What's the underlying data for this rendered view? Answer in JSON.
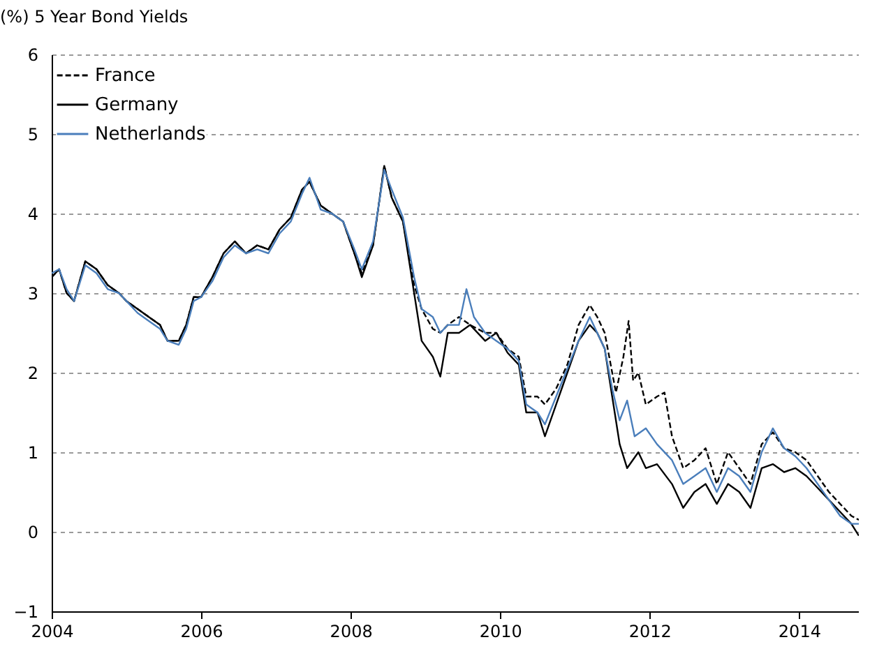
{
  "chart_data": {
    "type": "line",
    "title": "(%) 5 Year Bond Yields",
    "xlim": [
      2004,
      2014.8
    ],
    "xticks": [
      2004,
      2006,
      2008,
      2010,
      2012,
      2014
    ],
    "ylim": [
      -1,
      6
    ],
    "yticks": [
      -1,
      0,
      1,
      2,
      3,
      4,
      5,
      6
    ],
    "grid": "y",
    "legend": "top left",
    "marker": "none",
    "series": [
      {
        "name": "France",
        "color": "#000000",
        "line_style": "dashed",
        "x": [
          2004.0,
          2004.1,
          2004.2,
          2004.3,
          2004.45,
          2004.6,
          2004.75,
          2004.9,
          2005.0,
          2005.15,
          2005.3,
          2005.45,
          2005.55,
          2005.7,
          2005.8,
          2005.9,
          2006.0,
          2006.15,
          2006.3,
          2006.45,
          2006.6,
          2006.75,
          2006.9,
          2007.05,
          2007.2,
          2007.35,
          2007.45,
          2007.6,
          2007.75,
          2007.9,
          2008.05,
          2008.15,
          2008.3,
          2008.45,
          2008.55,
          2008.7,
          2008.85,
          2008.95,
          2009.1,
          2009.2,
          2009.3,
          2009.45,
          2009.6,
          2009.8,
          2009.95,
          2010.1,
          2010.25,
          2010.35,
          2010.5,
          2010.6,
          2010.75,
          2010.9,
          2011.05,
          2011.2,
          2011.3,
          2011.4,
          2011.5,
          2011.55,
          2011.65,
          2011.72,
          2011.78,
          2011.85,
          2011.95,
          2012.1,
          2012.2,
          2012.3,
          2012.45,
          2012.6,
          2012.75,
          2012.9,
          2013.05,
          2013.2,
          2013.35,
          2013.5,
          2013.65,
          2013.8,
          2013.95,
          2014.1,
          2014.25,
          2014.4,
          2014.55,
          2014.7,
          2014.8
        ],
        "values": [
          3.2,
          3.3,
          3.0,
          2.9,
          3.4,
          3.3,
          3.1,
          3.0,
          2.9,
          2.8,
          2.7,
          2.6,
          2.4,
          2.4,
          2.6,
          2.95,
          2.95,
          3.2,
          3.5,
          3.65,
          3.5,
          3.6,
          3.55,
          3.8,
          3.95,
          4.3,
          4.4,
          4.1,
          4.0,
          3.9,
          3.5,
          3.25,
          3.6,
          4.6,
          4.2,
          3.9,
          3.1,
          2.8,
          2.55,
          2.5,
          2.6,
          2.7,
          2.6,
          2.5,
          2.5,
          2.3,
          2.2,
          1.7,
          1.7,
          1.6,
          1.8,
          2.1,
          2.6,
          2.85,
          2.7,
          2.5,
          2.0,
          1.75,
          2.2,
          2.65,
          1.9,
          2.0,
          1.6,
          1.7,
          1.75,
          1.2,
          0.8,
          0.9,
          1.05,
          0.6,
          1.0,
          0.8,
          0.6,
          1.1,
          1.25,
          1.05,
          1.0,
          0.9,
          0.7,
          0.5,
          0.35,
          0.2,
          0.15
        ]
      },
      {
        "name": "Germany",
        "color": "#000000",
        "line_style": "solid",
        "x": [
          2004.0,
          2004.1,
          2004.2,
          2004.3,
          2004.45,
          2004.6,
          2004.75,
          2004.9,
          2005.0,
          2005.15,
          2005.3,
          2005.45,
          2005.55,
          2005.7,
          2005.8,
          2005.9,
          2006.0,
          2006.15,
          2006.3,
          2006.45,
          2006.6,
          2006.75,
          2006.9,
          2007.05,
          2007.2,
          2007.35,
          2007.45,
          2007.6,
          2007.75,
          2007.9,
          2008.05,
          2008.15,
          2008.3,
          2008.45,
          2008.55,
          2008.7,
          2008.85,
          2008.95,
          2009.1,
          2009.2,
          2009.3,
          2009.45,
          2009.6,
          2009.8,
          2009.95,
          2010.1,
          2010.25,
          2010.35,
          2010.5,
          2010.6,
          2010.75,
          2010.9,
          2011.05,
          2011.2,
          2011.3,
          2011.4,
          2011.5,
          2011.6,
          2011.7,
          2011.85,
          2011.95,
          2012.1,
          2012.3,
          2012.45,
          2012.6,
          2012.75,
          2012.9,
          2013.05,
          2013.2,
          2013.35,
          2013.5,
          2013.65,
          2013.8,
          2013.95,
          2014.1,
          2014.25,
          2014.4,
          2014.55,
          2014.7,
          2014.8
        ],
        "values": [
          3.2,
          3.3,
          3.0,
          2.9,
          3.4,
          3.3,
          3.1,
          3.0,
          2.9,
          2.8,
          2.7,
          2.6,
          2.4,
          2.4,
          2.6,
          2.95,
          2.95,
          3.2,
          3.5,
          3.65,
          3.5,
          3.6,
          3.55,
          3.8,
          3.95,
          4.3,
          4.4,
          4.1,
          4.0,
          3.9,
          3.5,
          3.2,
          3.6,
          4.6,
          4.2,
          3.9,
          3.0,
          2.4,
          2.2,
          1.95,
          2.5,
          2.5,
          2.6,
          2.4,
          2.5,
          2.25,
          2.1,
          1.5,
          1.5,
          1.2,
          1.6,
          2.0,
          2.4,
          2.6,
          2.5,
          2.3,
          1.7,
          1.1,
          0.8,
          1.0,
          0.8,
          0.85,
          0.6,
          0.3,
          0.5,
          0.6,
          0.35,
          0.6,
          0.5,
          0.3,
          0.8,
          0.85,
          0.75,
          0.8,
          0.7,
          0.55,
          0.4,
          0.25,
          0.1,
          -0.05
        ]
      },
      {
        "name": "Netherlands",
        "color": "#4a7ebb",
        "line_style": "solid",
        "x": [
          2004.0,
          2004.1,
          2004.2,
          2004.3,
          2004.45,
          2004.6,
          2004.75,
          2004.9,
          2005.0,
          2005.15,
          2005.3,
          2005.45,
          2005.55,
          2005.7,
          2005.8,
          2005.9,
          2006.0,
          2006.15,
          2006.3,
          2006.45,
          2006.6,
          2006.75,
          2006.9,
          2007.05,
          2007.2,
          2007.35,
          2007.45,
          2007.6,
          2007.75,
          2007.9,
          2008.05,
          2008.15,
          2008.3,
          2008.45,
          2008.55,
          2008.7,
          2008.85,
          2008.95,
          2009.1,
          2009.2,
          2009.3,
          2009.45,
          2009.55,
          2009.65,
          2009.8,
          2009.95,
          2010.1,
          2010.25,
          2010.35,
          2010.5,
          2010.6,
          2010.75,
          2010.9,
          2011.05,
          2011.2,
          2011.3,
          2011.4,
          2011.5,
          2011.6,
          2011.7,
          2011.8,
          2011.95,
          2012.1,
          2012.3,
          2012.45,
          2012.6,
          2012.75,
          2012.9,
          2013.05,
          2013.2,
          2013.35,
          2013.5,
          2013.65,
          2013.8,
          2013.95,
          2014.1,
          2014.25,
          2014.4,
          2014.55,
          2014.7,
          2014.8
        ],
        "values": [
          3.25,
          3.3,
          3.05,
          2.9,
          3.35,
          3.25,
          3.05,
          3.0,
          2.9,
          2.75,
          2.65,
          2.55,
          2.4,
          2.35,
          2.55,
          2.9,
          2.95,
          3.15,
          3.45,
          3.6,
          3.5,
          3.55,
          3.5,
          3.75,
          3.9,
          4.25,
          4.45,
          4.05,
          4.0,
          3.9,
          3.55,
          3.3,
          3.65,
          4.55,
          4.3,
          3.95,
          3.2,
          2.8,
          2.7,
          2.5,
          2.6,
          2.6,
          3.05,
          2.7,
          2.5,
          2.4,
          2.3,
          2.15,
          1.6,
          1.5,
          1.35,
          1.7,
          2.05,
          2.4,
          2.7,
          2.5,
          2.3,
          1.8,
          1.4,
          1.65,
          1.2,
          1.3,
          1.1,
          0.9,
          0.6,
          0.7,
          0.8,
          0.5,
          0.8,
          0.7,
          0.5,
          1.0,
          1.3,
          1.05,
          0.95,
          0.8,
          0.6,
          0.4,
          0.2,
          0.1,
          0.1
        ]
      }
    ]
  }
}
